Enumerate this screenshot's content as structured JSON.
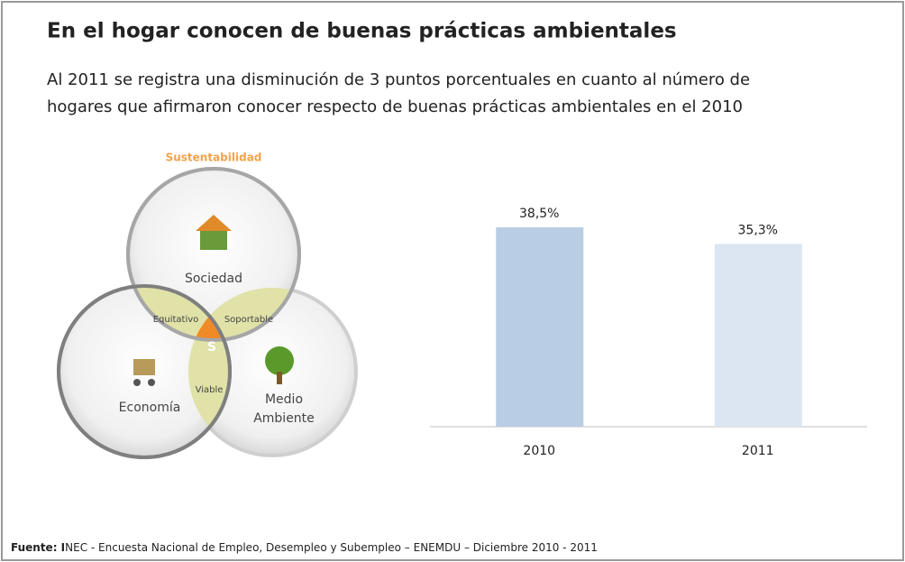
{
  "title": "En el hogar conocen de buenas prácticas ambientales",
  "subtitle": [
    "Al 2011 se registra una disminución de 3 puntos porcentuales en cuanto al número de",
    "hogares que afirmaron conocer respecto de buenas prácticas ambientales en el 2010"
  ],
  "diagram": {
    "heading": "Sustentabilidad",
    "society": "Sociedad",
    "economy": "Economía",
    "environment": [
      "Medio",
      "Ambiente"
    ],
    "equitable": "Equitativo",
    "bearable": "Soportable",
    "viable": "Viable",
    "center": "S"
  },
  "chart_data": {
    "type": "bar",
    "categories": [
      "2010",
      "2011"
    ],
    "values": [
      38.5,
      35.3
    ],
    "value_labels": [
      "38,5%",
      "35,3%"
    ],
    "colors": [
      "#b9cde5",
      "#dce6f2"
    ]
  },
  "source": {
    "label": "Fuente: I",
    "text": "NEC  -  Encuesta Nacional  de Empleo, Desempleo y Subempleo – ENEMDU – Diciembre 2010  - 2011"
  }
}
